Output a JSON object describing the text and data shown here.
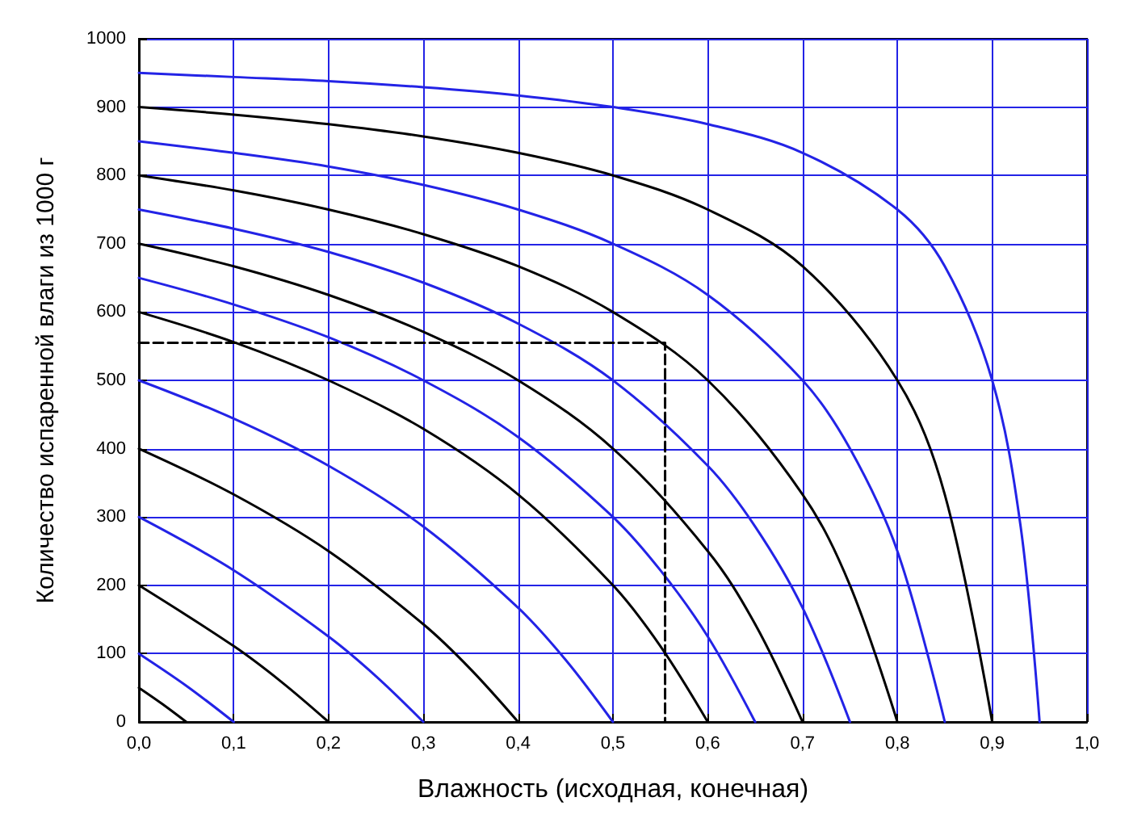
{
  "chart_data": {
    "type": "line",
    "xlabel": "Влажность (исходная, конечная)",
    "ylabel": "Количество испаренной влаги из 1000 г",
    "xlim": [
      0,
      1
    ],
    "xticks": [
      {
        "value": 0,
        "label": "0,0"
      },
      {
        "value": 0.1,
        "label": "0,1"
      },
      {
        "value": 0.2,
        "label": "0,2"
      },
      {
        "value": 0.3,
        "label": "0,3"
      },
      {
        "value": 0.4,
        "label": "0,4"
      },
      {
        "value": 0.5,
        "label": "0,5"
      },
      {
        "value": 0.6,
        "label": "0,6"
      },
      {
        "value": 0.7,
        "label": "0,7"
      },
      {
        "value": 0.8,
        "label": "0,8"
      },
      {
        "value": 0.9,
        "label": "0,9"
      },
      {
        "value": 1,
        "label": "1,0"
      }
    ],
    "ylim": [
      0,
      1000
    ],
    "yticks": [
      0,
      100,
      200,
      300,
      400,
      500,
      600,
      700,
      800,
      900,
      1000
    ],
    "grid": true,
    "marker": "none",
    "line_style": "solid",
    "series": [
      {
        "color": "#2323e6",
        "x": [
          0,
          0.1,
          0.2,
          0.3,
          0.4,
          0.5,
          0.6,
          0.7,
          0.8,
          0.85,
          0.9,
          0.93,
          0.95
        ],
        "values": [
          950,
          944,
          938,
          929,
          917,
          900,
          875,
          833,
          750,
          667,
          500,
          286,
          0
        ]
      },
      {
        "color": "#000000",
        "x": [
          0,
          0.1,
          0.2,
          0.3,
          0.4,
          0.5,
          0.6,
          0.7,
          0.8,
          0.85,
          0.9
        ],
        "values": [
          900,
          889,
          875,
          857,
          833,
          800,
          750,
          667,
          500,
          333,
          0
        ]
      },
      {
        "color": "#2323e6",
        "x": [
          0,
          0.1,
          0.2,
          0.3,
          0.4,
          0.5,
          0.6,
          0.7,
          0.75,
          0.8,
          0.85
        ],
        "values": [
          850,
          833,
          813,
          786,
          750,
          700,
          625,
          500,
          400,
          250,
          0
        ]
      },
      {
        "color": "#000000",
        "x": [
          0,
          0.1,
          0.2,
          0.3,
          0.4,
          0.5,
          0.6,
          0.7,
          0.75,
          0.8
        ],
        "values": [
          800,
          778,
          750,
          714,
          667,
          600,
          500,
          333,
          200,
          0
        ]
      },
      {
        "color": "#2323e6",
        "x": [
          0,
          0.1,
          0.2,
          0.3,
          0.4,
          0.5,
          0.6,
          0.65,
          0.7,
          0.75
        ],
        "values": [
          750,
          722,
          688,
          643,
          583,
          500,
          375,
          286,
          167,
          0
        ]
      },
      {
        "color": "#000000",
        "x": [
          0,
          0.1,
          0.2,
          0.3,
          0.4,
          0.5,
          0.6,
          0.65,
          0.7
        ],
        "values": [
          700,
          667,
          625,
          571,
          500,
          400,
          250,
          143,
          0
        ]
      },
      {
        "color": "#2323e6",
        "x": [
          0,
          0.1,
          0.2,
          0.3,
          0.4,
          0.5,
          0.55,
          0.6,
          0.65
        ],
        "values": [
          650,
          611,
          563,
          500,
          417,
          300,
          222,
          125,
          0
        ]
      },
      {
        "color": "#000000",
        "x": [
          0,
          0.1,
          0.2,
          0.3,
          0.4,
          0.5,
          0.55,
          0.6
        ],
        "values": [
          600,
          556,
          500,
          429,
          333,
          200,
          111,
          0
        ]
      },
      {
        "color": "#2323e6",
        "x": [
          0,
          0.1,
          0.2,
          0.3,
          0.4,
          0.45,
          0.5
        ],
        "values": [
          500,
          444,
          375,
          286,
          167,
          91,
          0
        ]
      },
      {
        "color": "#000000",
        "x": [
          0,
          0.1,
          0.2,
          0.3,
          0.35,
          0.4
        ],
        "values": [
          400,
          333,
          250,
          143,
          77,
          0
        ]
      },
      {
        "color": "#2323e6",
        "x": [
          0,
          0.1,
          0.2,
          0.25,
          0.3
        ],
        "values": [
          300,
          222,
          125,
          67,
          0
        ]
      },
      {
        "color": "#000000",
        "x": [
          0,
          0.1,
          0.15,
          0.2
        ],
        "values": [
          200,
          111,
          59,
          0
        ]
      },
      {
        "color": "#2323e6",
        "x": [
          0,
          0.05,
          0.1
        ],
        "values": [
          100,
          53,
          0
        ]
      },
      {
        "color": "#000000",
        "x": [
          0,
          0.025,
          0.05
        ],
        "values": [
          50,
          26,
          0
        ]
      },
      {
        "color": "#000000",
        "line_style": "dashed",
        "x": [
          0,
          0.555,
          0.555
        ],
        "values": [
          555,
          555,
          0
        ]
      }
    ]
  }
}
